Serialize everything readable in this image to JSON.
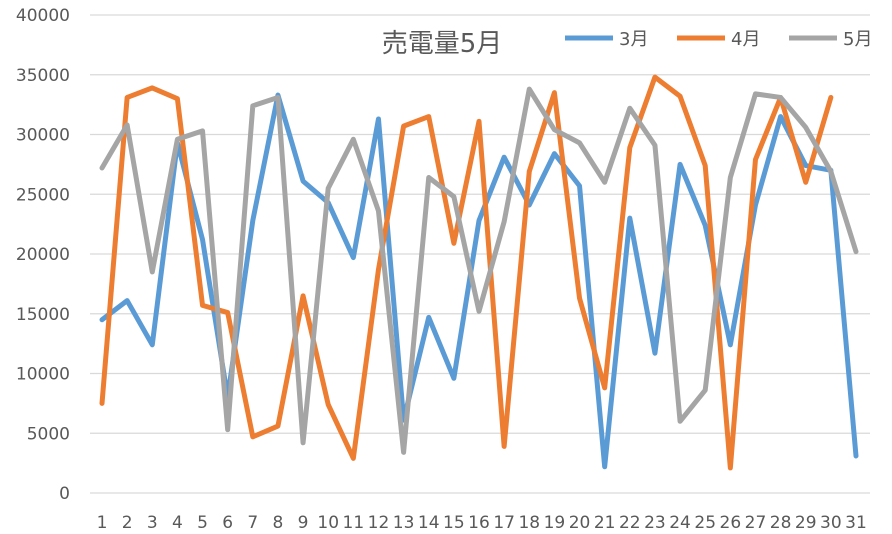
{
  "chart_data": {
    "type": "line",
    "title": "売電量5月",
    "xlabel": "",
    "ylabel": "",
    "ylim": [
      0,
      40000
    ],
    "yticks": [
      0,
      5000,
      10000,
      15000,
      20000,
      25000,
      30000,
      35000,
      40000
    ],
    "grid": true,
    "legend_placement": "top-right",
    "categories": [
      "1",
      "2",
      "3",
      "4",
      "5",
      "6",
      "7",
      "8",
      "9",
      "10",
      "11",
      "12",
      "13",
      "14",
      "15",
      "16",
      "17",
      "18",
      "19",
      "20",
      "21",
      "22",
      "23",
      "24",
      "25",
      "26",
      "27",
      "28",
      "29",
      "30",
      "31"
    ],
    "series": [
      {
        "name": "3月",
        "color": "#5B9BD5",
        "values": [
          14500,
          16100,
          12400,
          29300,
          21200,
          8000,
          22800,
          33300,
          26100,
          24300,
          19700,
          31300,
          6100,
          14700,
          9600,
          22800,
          28100,
          24100,
          28400,
          25700,
          2200,
          23000,
          11700,
          27500,
          22400,
          12400,
          24100,
          31500,
          27400,
          27000,
          3100
        ]
      },
      {
        "name": "4月",
        "color": "#ED7D31",
        "values": [
          7500,
          33100,
          33900,
          33000,
          15700,
          15100,
          4700,
          5600,
          16500,
          7400,
          2900,
          18700,
          30700,
          31500,
          20900,
          31100,
          3900,
          26900,
          33500,
          16300,
          8800,
          28900,
          34800,
          33200,
          27400,
          2100,
          27900,
          33100,
          26000,
          33100,
          null
        ]
      },
      {
        "name": "5月",
        "color": "#A5A5A5",
        "values": [
          27200,
          30800,
          18500,
          29600,
          30300,
          5300,
          32400,
          33100,
          4200,
          25500,
          29600,
          23600,
          3400,
          26400,
          24800,
          15200,
          22700,
          33800,
          30400,
          29300,
          26000,
          32200,
          29100,
          6000,
          8600,
          26400,
          33400,
          33100,
          30600,
          26900,
          20200
        ]
      }
    ]
  }
}
